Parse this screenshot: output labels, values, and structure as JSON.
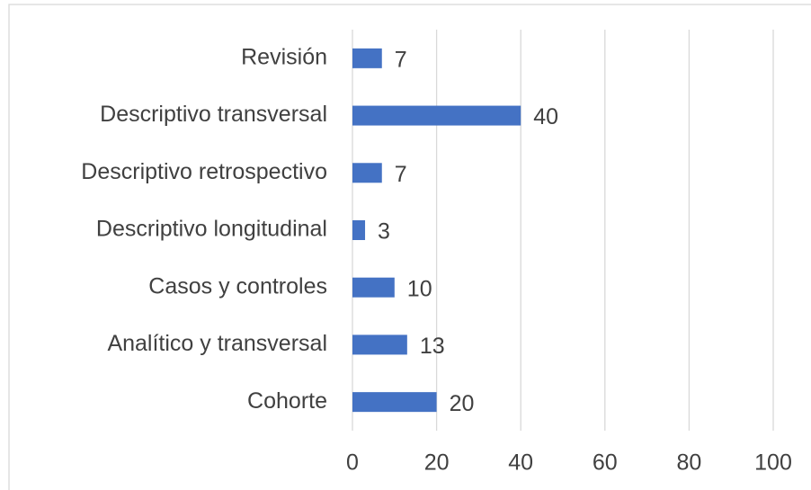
{
  "chart_data": {
    "type": "bar",
    "orientation": "horizontal",
    "categories": [
      "Revisión",
      "Descriptivo transversal",
      "Descriptivo retrospectivo",
      "Descriptivo longitudinal",
      "Casos y controles",
      "Analítico y transversal",
      "Cohorte"
    ],
    "values": [
      7,
      40,
      7,
      3,
      10,
      13,
      20
    ],
    "color": "#4472c4",
    "xlim": [
      0,
      100
    ],
    "xticks": [
      0,
      20,
      40,
      60,
      80,
      100
    ],
    "grid": true
  }
}
